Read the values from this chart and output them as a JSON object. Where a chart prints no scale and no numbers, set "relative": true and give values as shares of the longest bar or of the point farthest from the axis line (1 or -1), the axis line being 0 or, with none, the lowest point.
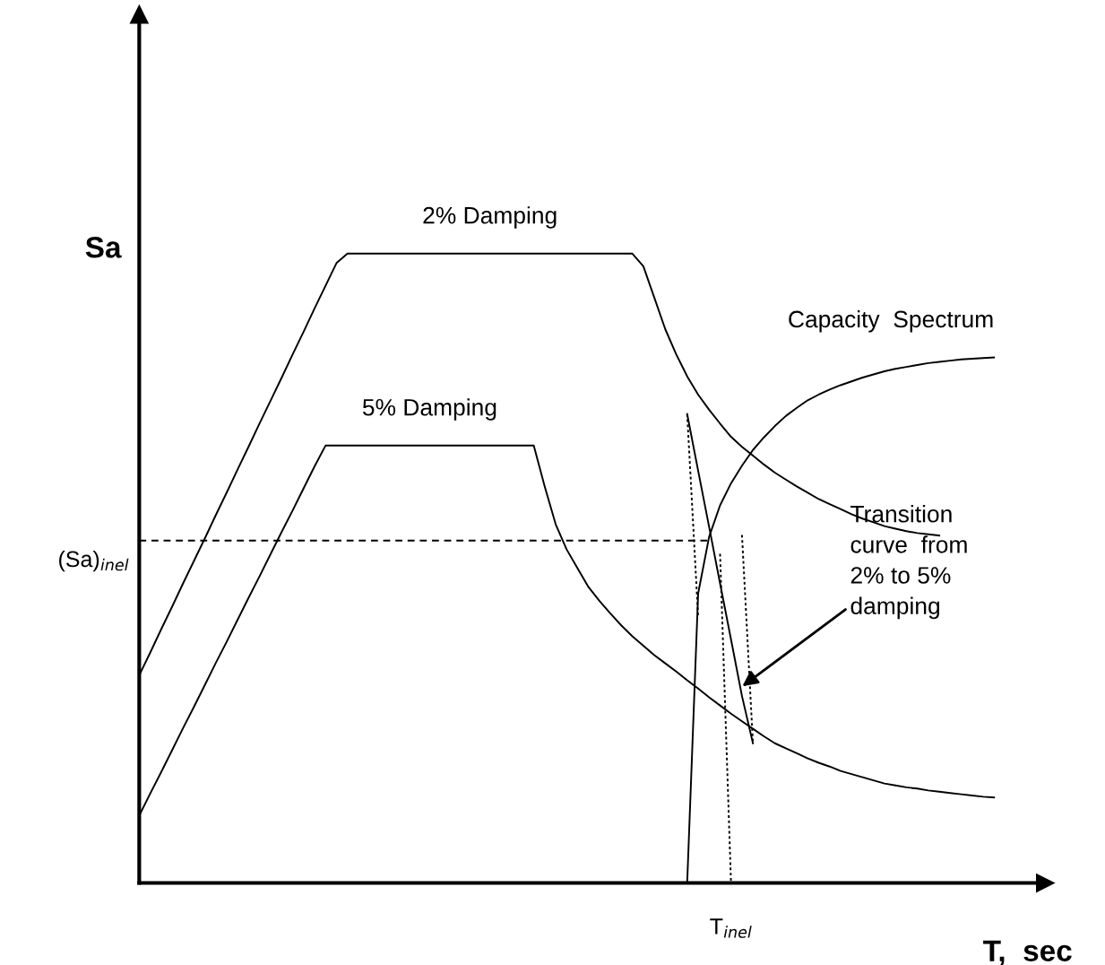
{
  "chart_data": {
    "type": "line",
    "relative": true,
    "xlabel": "T,  sec",
    "ylabel": "Sa",
    "marker": "none",
    "categories": [
      null,
      null,
      null,
      null,
      null,
      null,
      null,
      null,
      null,
      null,
      null,
      null,
      null,
      null,
      null,
      null,
      null,
      null,
      null,
      null,
      null,
      null,
      null,
      null,
      null,
      null,
      null,
      null,
      null,
      null,
      null,
      null,
      null,
      null,
      null,
      null,
      null,
      null,
      null,
      null,
      null,
      null,
      null,
      null,
      null,
      null,
      null,
      null,
      null,
      null,
      null,
      null,
      null,
      null,
      null,
      null,
      null,
      null,
      null,
      null,
      null,
      null,
      null,
      null,
      null,
      null,
      null,
      null,
      null,
      null,
      null,
      null,
      null,
      null,
      null,
      null,
      null,
      null,
      null
    ],
    "series": [
      {
        "name": "2% Damping",
        "color": "#000000",
        "line_style": "solid",
        "values": [
          0.33,
          0.366,
          0.403,
          0.439,
          0.476,
          0.512,
          0.548,
          0.585,
          0.621,
          0.658,
          0.694,
          0.731,
          0.767,
          0.803,
          0.84,
          0.876,
          0.913,
          0.949,
          0.985,
          1.0,
          1.0,
          1.0,
          1.0,
          1.0,
          1.0,
          1.0,
          1.0,
          1.0,
          1.0,
          1.0,
          1.0,
          1.0,
          1.0,
          1.0,
          1.0,
          1.0,
          1.0,
          1.0,
          1.0,
          1.0,
          1.0,
          1.0,
          1.0,
          1.0,
          1.0,
          1.0,
          0.98,
          0.93,
          0.88,
          0.84,
          0.805,
          0.776,
          0.752,
          0.73,
          0.709,
          0.693,
          0.679,
          0.665,
          0.652,
          0.641,
          0.63,
          0.62,
          0.61,
          0.602,
          0.594,
          0.586,
          0.579,
          0.573,
          0.567,
          0.563,
          0.559,
          0.556,
          0.554,
          0.552,
          null,
          null,
          null,
          null,
          null
        ]
      },
      {
        "name": "5% Damping",
        "color": "#000000",
        "line_style": "solid",
        "values": [
          0.107,
          0.142,
          0.176,
          0.211,
          0.246,
          0.28,
          0.315,
          0.35,
          0.384,
          0.419,
          0.454,
          0.488,
          0.523,
          0.558,
          0.592,
          0.627,
          0.662,
          0.695,
          0.695,
          0.695,
          0.695,
          0.695,
          0.695,
          0.695,
          0.695,
          0.695,
          0.695,
          0.695,
          0.695,
          0.695,
          0.695,
          0.695,
          0.695,
          0.695,
          0.695,
          0.695,
          0.695,
          0.63,
          0.57,
          0.53,
          0.5,
          0.47,
          0.448,
          0.428,
          0.409,
          0.392,
          0.377,
          0.362,
          0.349,
          0.336,
          0.322,
          0.309,
          0.295,
          0.282,
          0.269,
          0.257,
          0.245,
          0.233,
          0.222,
          0.214,
          0.206,
          0.198,
          0.191,
          0.185,
          0.178,
          0.173,
          0.168,
          0.163,
          0.158,
          0.155,
          0.152,
          0.15,
          0.147,
          0.145,
          0.143,
          0.141,
          0.139,
          0.137,
          0.136
        ]
      },
      {
        "name": "Capacity  Spectrum",
        "color": "#000000",
        "line_style": "solid",
        "values": [
          null,
          null,
          null,
          null,
          null,
          null,
          null,
          null,
          null,
          null,
          null,
          null,
          null,
          null,
          null,
          null,
          null,
          null,
          null,
          null,
          null,
          null,
          null,
          null,
          null,
          null,
          null,
          null,
          null,
          null,
          null,
          null,
          null,
          null,
          null,
          null,
          null,
          null,
          null,
          null,
          null,
          null,
          null,
          null,
          null,
          null,
          null,
          null,
          null,
          null,
          0,
          0.46,
          0.55,
          0.6,
          0.635,
          0.663,
          0.688,
          0.708,
          0.726,
          0.742,
          0.755,
          0.767,
          0.776,
          0.784,
          0.791,
          0.797,
          0.803,
          0.808,
          0.813,
          0.817,
          0.82,
          0.823,
          0.826,
          0.828,
          0.83,
          0.832,
          0.833,
          0.834,
          0.835
        ]
      },
      {
        "color": "#000000",
        "line_style": "solid",
        "values": [
          null,
          null,
          null,
          null,
          null,
          null,
          null,
          null,
          null,
          null,
          null,
          null,
          null,
          null,
          null,
          null,
          null,
          null,
          null,
          null,
          null,
          null,
          null,
          null,
          null,
          null,
          null,
          null,
          null,
          null,
          null,
          null,
          null,
          null,
          null,
          null,
          null,
          null,
          null,
          null,
          null,
          null,
          null,
          null,
          null,
          null,
          null,
          null,
          null,
          null,
          0.745,
          0.655,
          0.566,
          0.476,
          0.387,
          0.297,
          0.222,
          null,
          null,
          null,
          null,
          null,
          null,
          null,
          null,
          null,
          null,
          null,
          null,
          null,
          null,
          null,
          null,
          null,
          null,
          null,
          null,
          null,
          null
        ]
      },
      {
        "color": "#000000",
        "line_style": "dashed",
        "values": [
          0.544,
          0.544,
          0.544,
          0.544,
          0.544,
          0.544,
          0.544,
          0.544,
          0.544,
          0.544,
          0.544,
          0.544,
          0.544,
          0.544,
          0.544,
          0.544,
          0.544,
          0.544,
          0.544,
          0.544,
          0.544,
          0.544,
          0.544,
          0.544,
          0.544,
          0.544,
          0.544,
          0.544,
          0.544,
          0.544,
          0.544,
          0.544,
          0.544,
          0.544,
          0.544,
          0.544,
          0.544,
          0.544,
          0.544,
          0.544,
          0.544,
          0.544,
          0.544,
          0.544,
          0.544,
          0.544,
          0.544,
          0.544,
          0.544,
          0.544,
          0.544,
          0.544,
          0.544,
          null,
          null,
          null,
          null,
          null,
          null,
          null,
          null,
          null,
          null,
          null,
          null,
          null,
          null,
          null,
          null,
          null,
          null,
          null,
          null,
          null,
          null,
          null,
          null,
          null,
          null
        ]
      },
      {
        "color": "#000000",
        "line_style": "dotted",
        "values": [
          null,
          null,
          null,
          null,
          null,
          null,
          null,
          null,
          null,
          null,
          null,
          null,
          null,
          null,
          null,
          null,
          null,
          null,
          null,
          null,
          null,
          null,
          null,
          null,
          null,
          null,
          null,
          null,
          null,
          null,
          null,
          null,
          null,
          null,
          null,
          null,
          null,
          null,
          null,
          null,
          null,
          null,
          null,
          null,
          null,
          null,
          null,
          null,
          null,
          null,
          0.745,
          0.423,
          null,
          null,
          null,
          null,
          null,
          null,
          null,
          null,
          null,
          null,
          null,
          null,
          null,
          null,
          null,
          null,
          null,
          null,
          null,
          null,
          null,
          null,
          null,
          null,
          null,
          null,
          null
        ]
      },
      {
        "color": "#000000",
        "line_style": "dotted",
        "values": [
          null,
          null,
          null,
          null,
          null,
          null,
          null,
          null,
          null,
          null,
          null,
          null,
          null,
          null,
          null,
          null,
          null,
          null,
          null,
          null,
          null,
          null,
          null,
          null,
          null,
          null,
          null,
          null,
          null,
          null,
          null,
          null,
          null,
          null,
          null,
          null,
          null,
          null,
          null,
          null,
          null,
          null,
          null,
          null,
          null,
          null,
          null,
          null,
          null,
          null,
          null,
          null,
          null,
          0.523,
          0,
          null,
          null,
          null,
          null,
          null,
          null,
          null,
          null,
          null,
          null,
          null,
          null,
          null,
          null,
          null,
          null,
          null,
          null,
          null,
          null,
          null,
          null,
          null,
          null
        ]
      },
      {
        "color": "#000000",
        "line_style": "dotted",
        "values": [
          null,
          null,
          null,
          null,
          null,
          null,
          null,
          null,
          null,
          null,
          null,
          null,
          null,
          null,
          null,
          null,
          null,
          null,
          null,
          null,
          null,
          null,
          null,
          null,
          null,
          null,
          null,
          null,
          null,
          null,
          null,
          null,
          null,
          null,
          null,
          null,
          null,
          null,
          null,
          null,
          null,
          null,
          null,
          null,
          null,
          null,
          null,
          null,
          null,
          null,
          null,
          null,
          null,
          null,
          null,
          0.553,
          0.222,
          null,
          null,
          null,
          null,
          null,
          null,
          null,
          null,
          null,
          null,
          null,
          null,
          null,
          null,
          null,
          null,
          null,
          null,
          null,
          null,
          null,
          null
        ]
      }
    ],
    "annotations": [
      "Transition\ncurve  from\n2% to 5%\ndamping",
      "(Sa)$_{inel}$",
      "T$_{inel}$"
    ]
  }
}
